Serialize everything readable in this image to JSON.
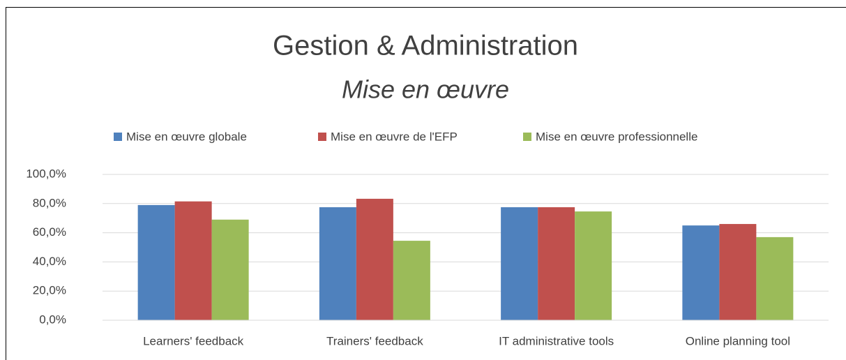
{
  "chart_data": {
    "type": "bar",
    "title": "Gestion & Administration",
    "subtitle": "Mise en œuvre",
    "categories": [
      "Learners' feedback",
      "Trainers' feedback",
      "IT administrative tools",
      "Online planning tool"
    ],
    "series": [
      {
        "name": "Mise en œuvre globale",
        "color": "#4f81bd",
        "values": [
          79,
          77.5,
          77.5,
          65
        ]
      },
      {
        "name": "Mise en œuvre de l'EFP",
        "color": "#c0504d",
        "values": [
          81.5,
          83.3,
          77.5,
          66
        ]
      },
      {
        "name": "Mise en œuvre professionnelle",
        "color": "#9bbb59",
        "values": [
          69,
          54.5,
          74.6,
          57
        ]
      }
    ],
    "ylim": [
      0,
      100
    ],
    "yticks": [
      {
        "value": 0,
        "label": "0,0%"
      },
      {
        "value": 20,
        "label": "20,0%"
      },
      {
        "value": 40,
        "label": "40,0%"
      },
      {
        "value": 60,
        "label": "60,0%"
      },
      {
        "value": 80,
        "label": "80,0%"
      },
      {
        "value": 100,
        "label": "100,0%"
      }
    ],
    "grid": true,
    "legend": "top"
  }
}
